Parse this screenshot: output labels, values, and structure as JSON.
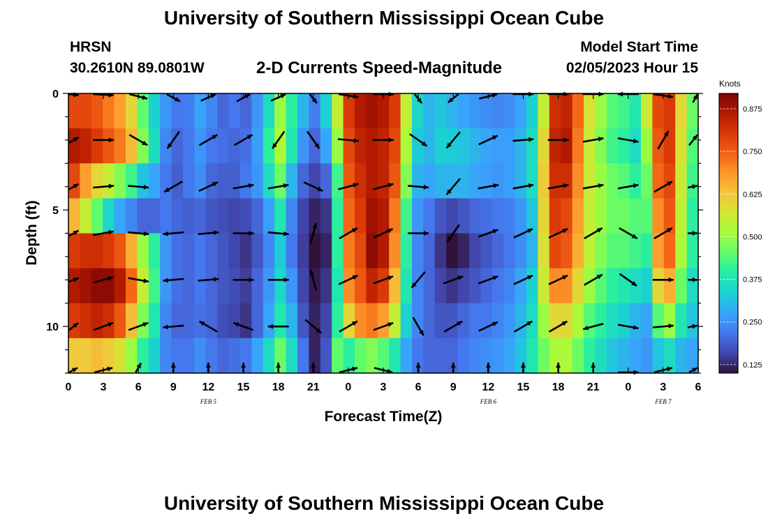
{
  "header": {
    "title": "University of Southern Mississippi Ocean Cube",
    "station": "HRSN",
    "coordinates": "30.2610N  89.0801W",
    "plot_title": "2-D Currents Speed-Magnitude",
    "model_start_label": "Model Start Time",
    "model_start_value": "02/05/2023 Hour 15"
  },
  "footer": {
    "title": "University of Southern Mississippi Ocean Cube"
  },
  "chart_data": {
    "type": "heatmap",
    "xlabel": "Forecast Time(Z)",
    "ylabel": "Depth (ft)",
    "colorbar_label": "Knots",
    "colorbar_ticks": [
      "0.875",
      "0.750",
      "0.625",
      "0.500",
      "0.375",
      "0.250",
      "0.125"
    ],
    "colorbar_values": [
      0.875,
      0.75,
      0.625,
      0.5,
      0.375,
      0.25,
      0.125
    ],
    "colorbar_range": [
      0.1,
      0.92
    ],
    "x_tick_labels": [
      "0",
      "3",
      "6",
      "9",
      "12",
      "15",
      "18",
      "21",
      "0",
      "3",
      "6",
      "9",
      "12",
      "15",
      "18",
      "21",
      "0",
      "3",
      "6"
    ],
    "x_range_hours": [
      0,
      54
    ],
    "date_labels": [
      {
        "text": "FEB 5",
        "hour": 12
      },
      {
        "text": "FEB 6",
        "hour": 36
      },
      {
        "text": "FEB 7",
        "hour": 51
      }
    ],
    "y_tick_labels": [
      "0",
      "5",
      "10"
    ],
    "y_tick_values": [
      0,
      5,
      10
    ],
    "y_range": [
      0,
      12
    ],
    "time_hours": [
      0,
      3,
      6,
      9,
      12,
      15,
      18,
      21,
      24,
      27,
      30,
      33,
      36,
      39,
      42,
      45,
      48,
      51,
      54
    ],
    "depths_ft": [
      0,
      2,
      4,
      6,
      8,
      10,
      12
    ],
    "speed_knots": [
      [
        0.78,
        0.86,
        0.78,
        0.65,
        0.8,
        0.86,
        0.8,
        0.62
      ],
      [
        0.78,
        0.84,
        0.68,
        0.55,
        0.82,
        0.88,
        0.82,
        0.62
      ],
      [
        0.76,
        0.8,
        0.6,
        0.45,
        0.82,
        0.9,
        0.84,
        0.64
      ],
      [
        0.72,
        0.76,
        0.55,
        0.35,
        0.8,
        0.9,
        0.82,
        0.62
      ],
      [
        0.68,
        0.72,
        0.48,
        0.28,
        0.76,
        0.86,
        0.76,
        0.58
      ],
      [
        0.6,
        0.64,
        0.42,
        0.24,
        0.66,
        0.74,
        0.64,
        0.5
      ],
      [
        0.45,
        0.48,
        0.32,
        0.2,
        0.5,
        0.55,
        0.48,
        0.4
      ],
      [
        0.34,
        0.36,
        0.28,
        0.2,
        0.4,
        0.42,
        0.38,
        0.34
      ],
      [
        0.26,
        0.24,
        0.22,
        0.22,
        0.26,
        0.26,
        0.24,
        0.24
      ],
      [
        0.22,
        0.2,
        0.19,
        0.2,
        0.21,
        0.21,
        0.2,
        0.22
      ],
      [
        0.23,
        0.22,
        0.22,
        0.19,
        0.2,
        0.2,
        0.2,
        0.22
      ],
      [
        0.28,
        0.26,
        0.25,
        0.2,
        0.22,
        0.22,
        0.21,
        0.25
      ],
      [
        0.24,
        0.22,
        0.2,
        0.18,
        0.2,
        0.2,
        0.2,
        0.22
      ],
      [
        0.2,
        0.21,
        0.19,
        0.17,
        0.18,
        0.18,
        0.17,
        0.2
      ],
      [
        0.22,
        0.2,
        0.19,
        0.16,
        0.16,
        0.17,
        0.16,
        0.21
      ],
      [
        0.2,
        0.21,
        0.22,
        0.17,
        0.14,
        0.15,
        0.14,
        0.22
      ],
      [
        0.26,
        0.27,
        0.26,
        0.2,
        0.18,
        0.2,
        0.2,
        0.28
      ],
      [
        0.36,
        0.4,
        0.36,
        0.27,
        0.24,
        0.26,
        0.28,
        0.36
      ],
      [
        0.5,
        0.52,
        0.46,
        0.38,
        0.33,
        0.35,
        0.38,
        0.46
      ],
      [
        0.4,
        0.38,
        0.3,
        0.24,
        0.22,
        0.26,
        0.3,
        0.36
      ],
      [
        0.3,
        0.26,
        0.2,
        0.16,
        0.15,
        0.16,
        0.18,
        0.22
      ],
      [
        0.23,
        0.2,
        0.16,
        0.12,
        0.1,
        0.11,
        0.12,
        0.12
      ],
      [
        0.34,
        0.28,
        0.2,
        0.14,
        0.12,
        0.14,
        0.16,
        0.18
      ],
      [
        0.55,
        0.5,
        0.42,
        0.4,
        0.4,
        0.38,
        0.4,
        0.45
      ],
      [
        0.8,
        0.78,
        0.76,
        0.74,
        0.72,
        0.7,
        0.6,
        0.4
      ],
      [
        0.86,
        0.84,
        0.82,
        0.8,
        0.78,
        0.76,
        0.7,
        0.45
      ],
      [
        0.88,
        0.86,
        0.86,
        0.88,
        0.9,
        0.84,
        0.72,
        0.48
      ],
      [
        0.86,
        0.84,
        0.84,
        0.86,
        0.86,
        0.8,
        0.68,
        0.44
      ],
      [
        0.8,
        0.78,
        0.76,
        0.72,
        0.7,
        0.64,
        0.55,
        0.38
      ],
      [
        0.55,
        0.52,
        0.48,
        0.42,
        0.4,
        0.38,
        0.34,
        0.28
      ],
      [
        0.35,
        0.33,
        0.3,
        0.26,
        0.24,
        0.24,
        0.24,
        0.22
      ],
      [
        0.3,
        0.3,
        0.28,
        0.22,
        0.2,
        0.2,
        0.2,
        0.2
      ],
      [
        0.32,
        0.34,
        0.3,
        0.18,
        0.14,
        0.16,
        0.18,
        0.2
      ],
      [
        0.3,
        0.33,
        0.3,
        0.16,
        0.1,
        0.14,
        0.18,
        0.2
      ],
      [
        0.28,
        0.32,
        0.3,
        0.18,
        0.12,
        0.16,
        0.2,
        0.22
      ],
      [
        0.26,
        0.3,
        0.28,
        0.2,
        0.16,
        0.18,
        0.22,
        0.24
      ],
      [
        0.25,
        0.28,
        0.27,
        0.21,
        0.18,
        0.2,
        0.22,
        0.25
      ],
      [
        0.24,
        0.27,
        0.26,
        0.22,
        0.2,
        0.22,
        0.24,
        0.26
      ],
      [
        0.25,
        0.27,
        0.27,
        0.23,
        0.22,
        0.24,
        0.26,
        0.28
      ],
      [
        0.28,
        0.3,
        0.3,
        0.26,
        0.25,
        0.28,
        0.3,
        0.32
      ],
      [
        0.34,
        0.36,
        0.36,
        0.32,
        0.3,
        0.34,
        0.36,
        0.38
      ],
      [
        0.55,
        0.6,
        0.62,
        0.6,
        0.58,
        0.56,
        0.5,
        0.46
      ],
      [
        0.82,
        0.84,
        0.82,
        0.8,
        0.78,
        0.7,
        0.6,
        0.52
      ],
      [
        0.84,
        0.86,
        0.82,
        0.78,
        0.76,
        0.7,
        0.6,
        0.52
      ],
      [
        0.74,
        0.72,
        0.7,
        0.68,
        0.66,
        0.6,
        0.52,
        0.46
      ],
      [
        0.58,
        0.56,
        0.56,
        0.55,
        0.54,
        0.5,
        0.44,
        0.4
      ],
      [
        0.5,
        0.48,
        0.5,
        0.5,
        0.48,
        0.44,
        0.4,
        0.36
      ],
      [
        0.44,
        0.42,
        0.46,
        0.46,
        0.44,
        0.4,
        0.36,
        0.32
      ],
      [
        0.42,
        0.4,
        0.44,
        0.46,
        0.44,
        0.38,
        0.34,
        0.3
      ],
      [
        0.38,
        0.36,
        0.4,
        0.44,
        0.42,
        0.36,
        0.3,
        0.28
      ],
      [
        0.56,
        0.5,
        0.46,
        0.44,
        0.4,
        0.34,
        0.28,
        0.26
      ],
      [
        0.78,
        0.76,
        0.74,
        0.7,
        0.68,
        0.6,
        0.44,
        0.32
      ],
      [
        0.8,
        0.8,
        0.78,
        0.76,
        0.74,
        0.66,
        0.5,
        0.36
      ],
      [
        0.6,
        0.58,
        0.56,
        0.54,
        0.52,
        0.46,
        0.38,
        0.3
      ],
      [
        0.46,
        0.44,
        0.42,
        0.4,
        0.4,
        0.36,
        0.32,
        0.28
      ]
    ],
    "speed_grid_shape": "54 time columns (one per hour, 0-54 h) x 8 depth rows (0-12 ft)",
    "vectors": {
      "description": "direction in degrees clockwise from north (toward), length proportional to speed",
      "depth_ft": [
        0,
        2,
        4,
        6,
        8,
        10,
        12
      ],
      "hours": [
        0,
        3,
        6,
        9,
        12,
        15,
        18,
        21,
        24,
        27,
        30,
        33,
        36,
        39,
        42,
        45,
        48,
        51,
        54
      ],
      "direction_deg": [
        [
          100,
          100,
          120,
          140,
          45,
          40,
          45,
          160,
          110,
          95,
          160,
          210,
          60,
          90,
          90,
          90,
          270,
          110,
          30
        ],
        [
          75,
          90,
          120,
          215,
          60,
          60,
          215,
          145,
          95,
          90,
          125,
          220,
          65,
          85,
          90,
          80,
          100,
          30,
          60
        ],
        [
          75,
          85,
          95,
          240,
          65,
          80,
          80,
          115,
          75,
          75,
          95,
          220,
          80,
          80,
          80,
          80,
          80,
          60,
          85
        ],
        [
          75,
          80,
          95,
          265,
          85,
          90,
          95,
          15,
          60,
          65,
          90,
          215,
          70,
          65,
          65,
          60,
          120,
          60,
          90
        ],
        [
          80,
          75,
          100,
          265,
          85,
          90,
          90,
          345,
          65,
          70,
          220,
          70,
          70,
          65,
          65,
          60,
          125,
          90,
          90
        ],
        [
          70,
          70,
          70,
          265,
          300,
          290,
          270,
          130,
          60,
          70,
          150,
          60,
          65,
          60,
          60,
          255,
          100,
          85,
          85
        ],
        [
          60,
          60,
          15,
          0,
          0,
          0,
          0,
          0,
          60,
          120,
          0,
          0,
          0,
          0,
          0,
          0,
          90,
          60,
          60
        ]
      ]
    }
  }
}
